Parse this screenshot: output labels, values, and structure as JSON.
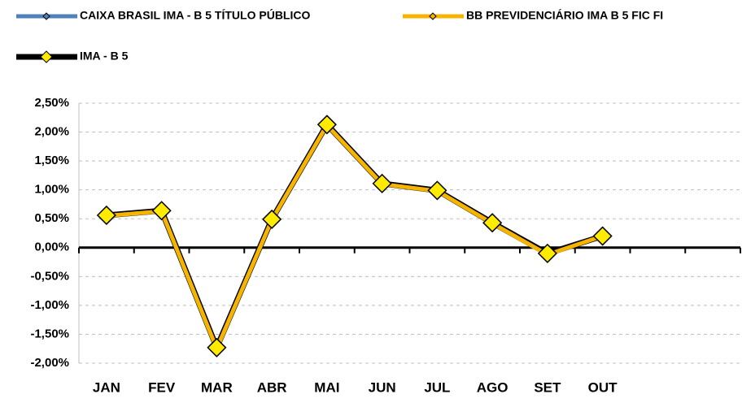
{
  "chart_data": {
    "type": "line",
    "categories": [
      "JAN",
      "FEV",
      "MAR",
      "ABR",
      "MAI",
      "JUN",
      "JUL",
      "AGO",
      "SET",
      "OUT",
      null,
      null
    ],
    "series": [
      {
        "name": "CAIXA BRASIL IMA - B 5 TÍTULO PÚBLICO",
        "color": "#4f81bd",
        "values": [
          0.55,
          0.63,
          -1.75,
          0.48,
          2.12,
          1.1,
          0.98,
          0.42,
          -0.12,
          0.2,
          null,
          null
        ]
      },
      {
        "name": "BB PREVIDENCIÁRIO IMA B 5 FIC FI",
        "color": "#f5b400",
        "values": [
          0.55,
          0.63,
          -1.75,
          0.48,
          2.12,
          1.1,
          0.98,
          0.42,
          -0.12,
          0.2,
          null,
          null
        ]
      },
      {
        "name": "IMA - B 5",
        "color": "#000000",
        "values": [
          0.56,
          0.64,
          -1.73,
          0.49,
          2.13,
          1.11,
          0.99,
          0.43,
          -0.1,
          0.2,
          null,
          null
        ]
      }
    ],
    "ylim": [
      -2.0,
      2.5
    ],
    "yticks": [
      {
        "value": -2.0,
        "label": "-2,00%"
      },
      {
        "value": -1.5,
        "label": "-1,50%"
      },
      {
        "value": -1.0,
        "label": "-1,00%"
      },
      {
        "value": -0.5,
        "label": "-0,50%"
      },
      {
        "value": 0,
        "label": "0,00%"
      },
      {
        "value": 0.5,
        "label": "0,50%"
      },
      {
        "value": 1.0,
        "label": "1,00%"
      },
      {
        "value": 1.5,
        "label": "1,50%"
      },
      {
        "value": 2.0,
        "label": "2,00%"
      },
      {
        "value": 2.5,
        "label": "2,50%"
      }
    ],
    "grid": true
  }
}
